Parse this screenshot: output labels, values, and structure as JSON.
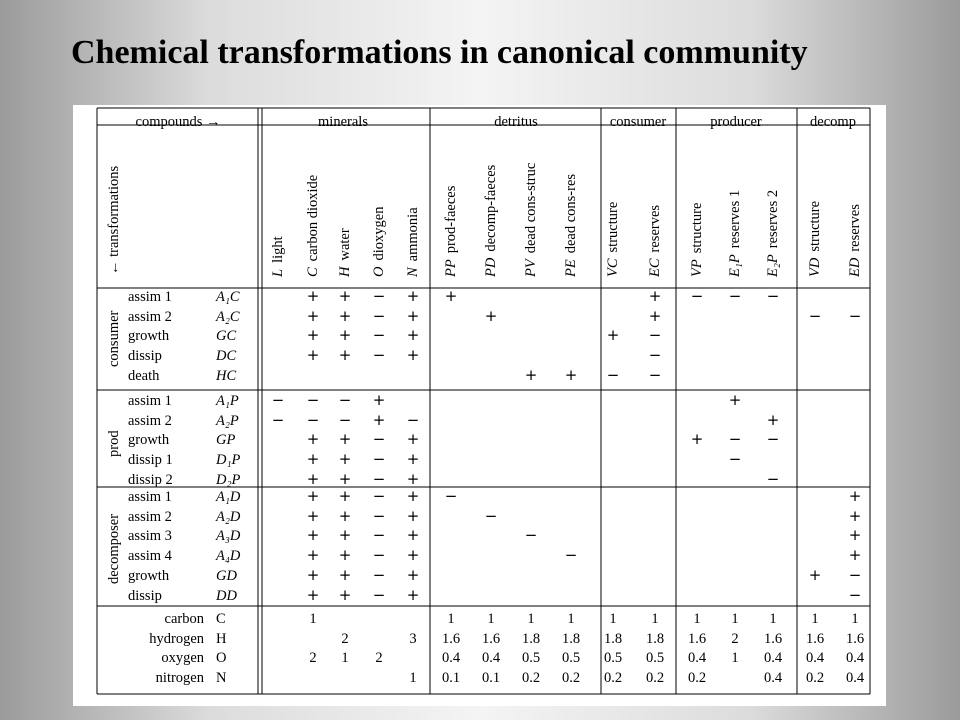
{
  "title": "Chemical transformations in canonical community",
  "header": {
    "corner": "compounds →",
    "side": "← transformations",
    "groups": [
      "minerals",
      "detritus",
      "consumer",
      "producer",
      "decomp"
    ]
  },
  "columns": [
    {
      "sym": "L",
      "name": "light"
    },
    {
      "sym": "C",
      "name": "carbon dioxide"
    },
    {
      "sym": "H",
      "name": "water"
    },
    {
      "sym": "O",
      "name": "dioxygen"
    },
    {
      "sym": "N",
      "name": "ammonia"
    },
    {
      "sym": "PP",
      "name": "prod-faeces"
    },
    {
      "sym": "PD",
      "name": "decomp-faeces"
    },
    {
      "sym": "PV",
      "name": "dead cons-struc"
    },
    {
      "sym": "PE",
      "name": "dead cons-res"
    },
    {
      "sym": "VC",
      "name": "structure"
    },
    {
      "sym": "EC",
      "name": "reserves"
    },
    {
      "sym": "VP",
      "name": "structure"
    },
    {
      "sym": "E₁P",
      "name": "reserves 1"
    },
    {
      "sym": "E₂P",
      "name": "reserves 2"
    },
    {
      "sym": "VD",
      "name": "structure"
    },
    {
      "sym": "ED",
      "name": "reserves"
    }
  ],
  "sections": [
    {
      "label": "consumer",
      "rows": [
        {
          "name": "assim 1",
          "sym": "A₁C",
          "cells": [
            "",
            "+",
            "+",
            "−",
            "+",
            "+",
            "",
            "",
            "",
            "",
            "+",
            "−",
            "−",
            "−",
            "",
            ""
          ]
        },
        {
          "name": "assim 2",
          "sym": "A₂C",
          "cells": [
            "",
            "+",
            "+",
            "−",
            "+",
            "",
            "+",
            "",
            "",
            "",
            "+",
            "",
            "",
            "",
            "−",
            "−"
          ]
        },
        {
          "name": "growth",
          "sym": "GC",
          "cells": [
            "",
            "+",
            "+",
            "−",
            "+",
            "",
            "",
            "",
            "",
            "+",
            "−",
            "",
            "",
            "",
            "",
            ""
          ]
        },
        {
          "name": "dissip",
          "sym": "DC",
          "cells": [
            "",
            "+",
            "+",
            "−",
            "+",
            "",
            "",
            "",
            "",
            "",
            "−",
            "",
            "",
            "",
            "",
            ""
          ]
        },
        {
          "name": "death",
          "sym": "HC",
          "cells": [
            "",
            "",
            "",
            "",
            "",
            "",
            "",
            "+",
            "+",
            "−",
            "−",
            "",
            "",
            "",
            "",
            ""
          ]
        }
      ]
    },
    {
      "label": "prod",
      "rows": [
        {
          "name": "assim 1",
          "sym": "A₁P",
          "cells": [
            "−",
            "−",
            "−",
            "+",
            "",
            "",
            "",
            "",
            "",
            "",
            "",
            "",
            "+",
            "",
            "",
            ""
          ]
        },
        {
          "name": "assim 2",
          "sym": "A₂P",
          "cells": [
            "−",
            "−",
            "−",
            "+",
            "−",
            "",
            "",
            "",
            "",
            "",
            "",
            "",
            "",
            "+",
            "",
            ""
          ]
        },
        {
          "name": "growth",
          "sym": "GP",
          "cells": [
            "",
            "+",
            "+",
            "−",
            "+",
            "",
            "",
            "",
            "",
            "",
            "",
            "+",
            "−",
            "−",
            "",
            ""
          ]
        },
        {
          "name": "dissip 1",
          "sym": "D₁P",
          "cells": [
            "",
            "+",
            "+",
            "−",
            "+",
            "",
            "",
            "",
            "",
            "",
            "",
            "",
            "−",
            "",
            "",
            ""
          ]
        },
        {
          "name": "dissip 2",
          "sym": "D₂P",
          "cells": [
            "",
            "+",
            "+",
            "−",
            "+",
            "",
            "",
            "",
            "",
            "",
            "",
            "",
            "",
            "−",
            "",
            ""
          ]
        }
      ]
    },
    {
      "label": "decomposer",
      "rows": [
        {
          "name": "assim 1",
          "sym": "A₁D",
          "cells": [
            "",
            "+",
            "+",
            "−",
            "+",
            "−",
            "",
            "",
            "",
            "",
            "",
            "",
            "",
            "",
            "",
            "+"
          ]
        },
        {
          "name": "assim 2",
          "sym": "A₂D",
          "cells": [
            "",
            "+",
            "+",
            "−",
            "+",
            "",
            "−",
            "",
            "",
            "",
            "",
            "",
            "",
            "",
            "",
            "+"
          ]
        },
        {
          "name": "assim 3",
          "sym": "A₃D",
          "cells": [
            "",
            "+",
            "+",
            "−",
            "+",
            "",
            "",
            "−",
            "",
            "",
            "",
            "",
            "",
            "",
            "",
            "+"
          ]
        },
        {
          "name": "assim 4",
          "sym": "A₄D",
          "cells": [
            "",
            "+",
            "+",
            "−",
            "+",
            "",
            "",
            "",
            "−",
            "",
            "",
            "",
            "",
            "",
            "",
            "+"
          ]
        },
        {
          "name": "growth",
          "sym": "GD",
          "cells": [
            "",
            "+",
            "+",
            "−",
            "+",
            "",
            "",
            "",
            "",
            "",
            "",
            "",
            "",
            "",
            "+",
            "−"
          ]
        },
        {
          "name": "dissip",
          "sym": "DD",
          "cells": [
            "",
            "+",
            "+",
            "−",
            "+",
            "",
            "",
            "",
            "",
            "",
            "",
            "",
            "",
            "",
            "",
            "−"
          ]
        }
      ]
    }
  ],
  "composition": [
    {
      "name": "carbon",
      "sym": "C",
      "cells": [
        "",
        "1",
        "",
        "",
        "",
        "1",
        "1",
        "1",
        "1",
        "1",
        "1",
        "1",
        "1",
        "1",
        "1",
        "1"
      ]
    },
    {
      "name": "hydrogen",
      "sym": "H",
      "cells": [
        "",
        "",
        "2",
        "",
        "3",
        "1.6",
        "1.6",
        "1.8",
        "1.8",
        "1.8",
        "1.8",
        "1.6",
        "2",
        "1.6",
        "1.6",
        "1.6"
      ]
    },
    {
      "name": "oxygen",
      "sym": "O",
      "cells": [
        "",
        "2",
        "1",
        "2",
        "",
        "0.4",
        "0.4",
        "0.5",
        "0.5",
        "0.5",
        "0.5",
        "0.4",
        "1",
        "0.4",
        "0.4",
        "0.4"
      ]
    },
    {
      "name": "nitrogen",
      "sym": "N",
      "cells": [
        "",
        "",
        "",
        "",
        "1",
        "0.1",
        "0.1",
        "0.2",
        "0.2",
        "0.2",
        "0.2",
        "0.2",
        "",
        "0.4",
        "0.2",
        "0.4"
      ]
    }
  ]
}
